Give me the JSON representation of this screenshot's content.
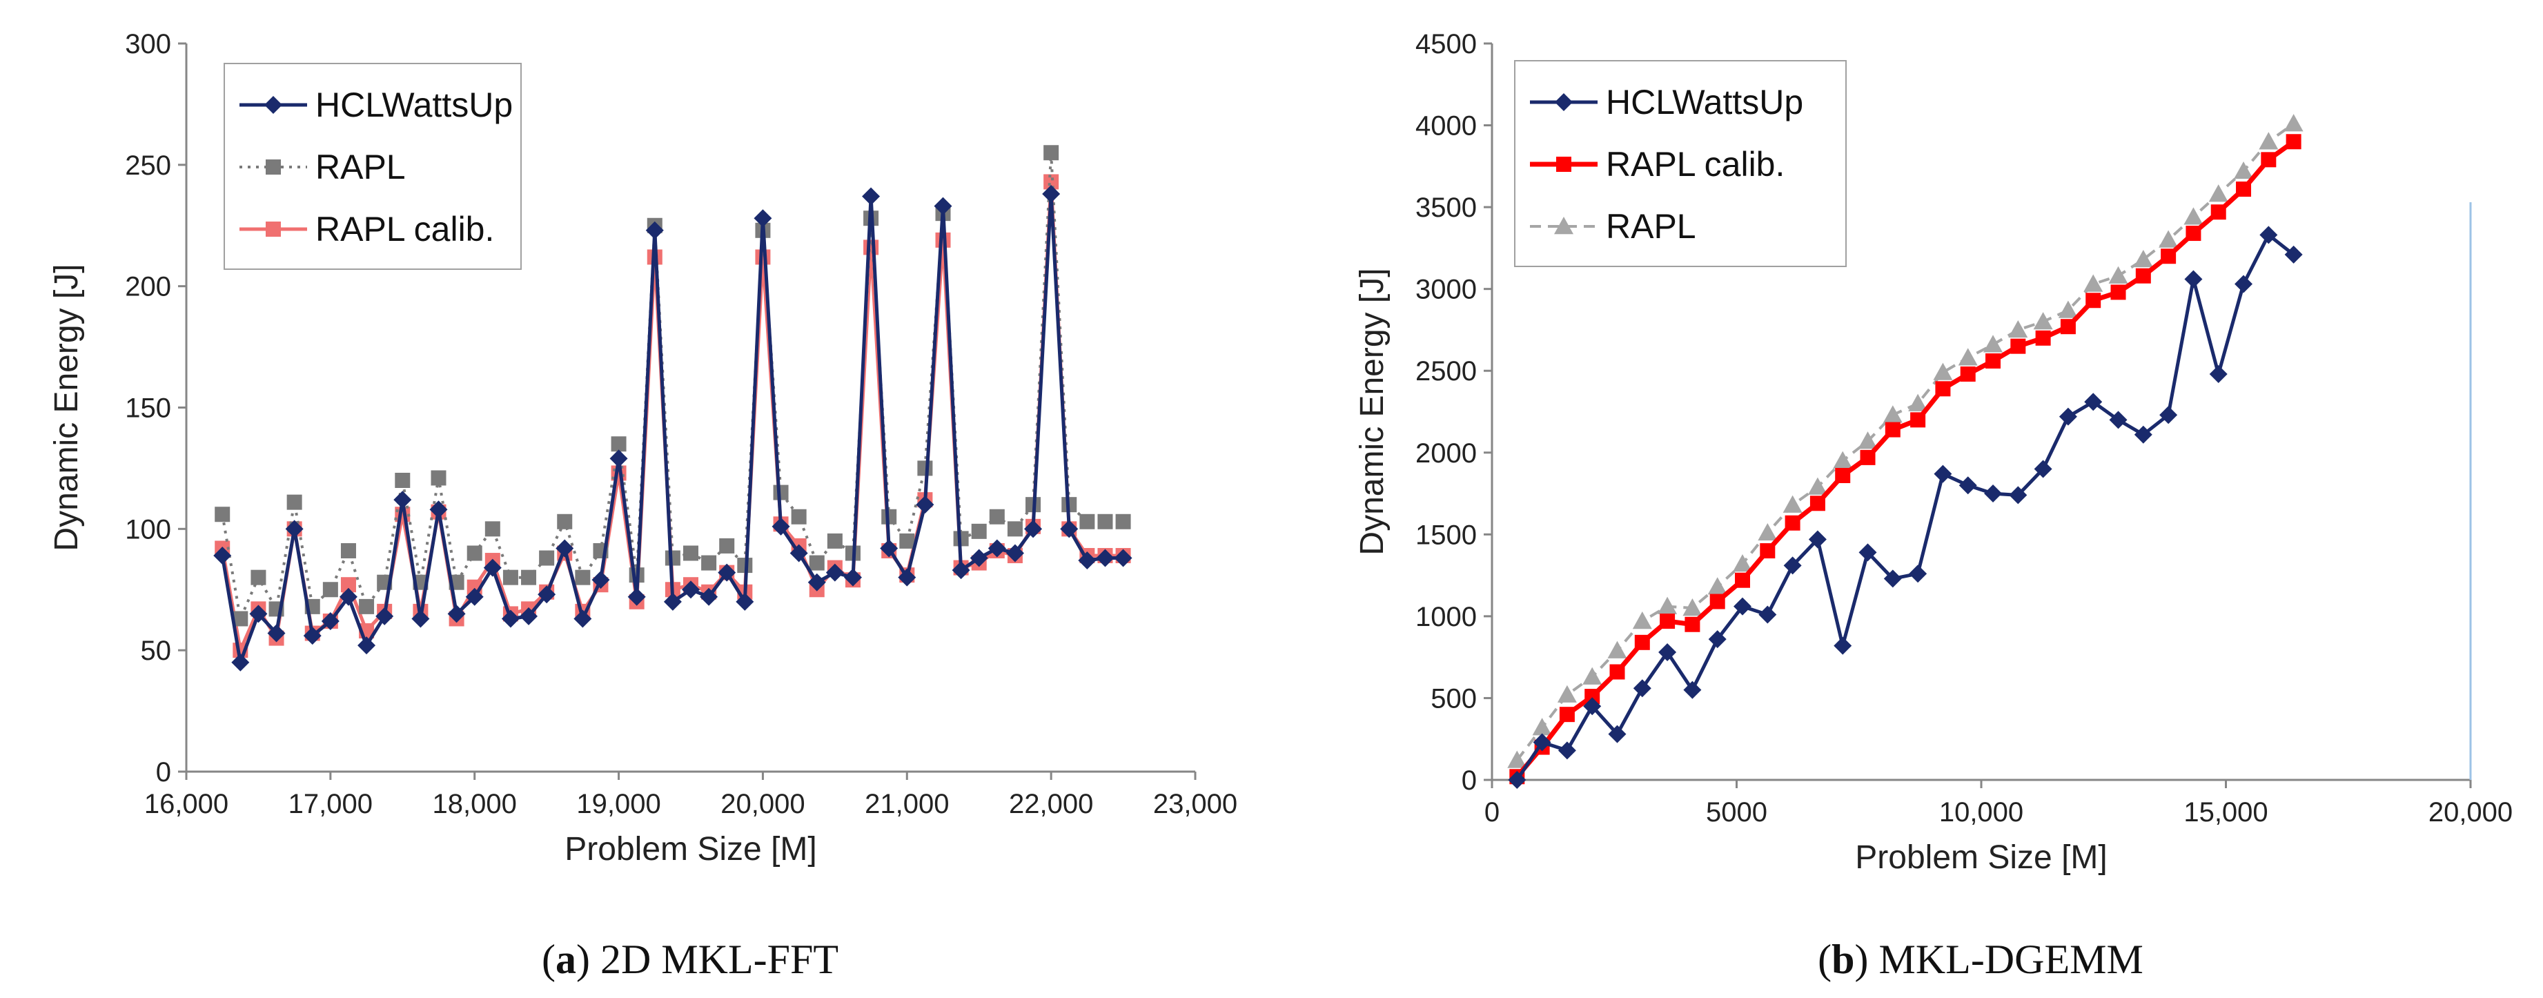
{
  "figures": [
    {
      "caption_letter": "a",
      "caption_text": "2D MKL-FFT"
    },
    {
      "caption_letter": "b",
      "caption_text": "MKL-DGEMM"
    }
  ],
  "colors": {
    "navy": "#1a2a6c",
    "gray": "#7a7a7a",
    "light_gray": "#a6a6a6",
    "red": "#ff0000",
    "pink": "#f07070"
  },
  "chart_data": [
    {
      "type": "line",
      "title": "",
      "xlabel": "Problem Size [M]",
      "ylabel": "Dynamic Energy [J]",
      "xlim": [
        16000,
        23000
      ],
      "ylim": [
        0,
        300
      ],
      "xticks": [
        "16,000",
        "17,000",
        "18,000",
        "19,000",
        "20,000",
        "21,000",
        "22,000",
        "23,000"
      ],
      "yticks": [
        "0",
        "50",
        "100",
        "150",
        "200",
        "250",
        "300"
      ],
      "grid": false,
      "legend_position": "top-left",
      "x": [
        16250,
        16375,
        16500,
        16625,
        16750,
        16875,
        17000,
        17125,
        17250,
        17375,
        17500,
        17625,
        17750,
        17875,
        18000,
        18125,
        18250,
        18375,
        18500,
        18625,
        18750,
        18875,
        19000,
        19125,
        19250,
        19375,
        19500,
        19625,
        19750,
        19875,
        20000,
        20125,
        20250,
        20375,
        20500,
        20625,
        20750,
        20875,
        21000,
        21125,
        21250,
        21375,
        21500,
        21625,
        21750,
        21875,
        22000,
        22125,
        22250,
        22375,
        22500
      ],
      "series": [
        {
          "name": "HCLWattsUp",
          "color": "#1a2a6c",
          "line_style": "solid",
          "marker": "diamond",
          "values": [
            89,
            45,
            65,
            57,
            100,
            56,
            62,
            72,
            52,
            64,
            112,
            63,
            108,
            65,
            72,
            84,
            63,
            64,
            73,
            92,
            63,
            79,
            129,
            72,
            223,
            70,
            75,
            72,
            82,
            70,
            228,
            101,
            90,
            78,
            82,
            80,
            237,
            92,
            80,
            110,
            233,
            83,
            88,
            92,
            90,
            100,
            238,
            100,
            87,
            88,
            88
          ]
        },
        {
          "name": "RAPL",
          "color": "#7a7a7a",
          "line_style": "dotted",
          "marker": "square",
          "values": [
            106,
            63,
            80,
            67,
            111,
            68,
            75,
            91,
            68,
            78,
            120,
            78,
            121,
            78,
            90,
            100,
            80,
            80,
            88,
            103,
            80,
            91,
            135,
            81,
            225,
            88,
            90,
            86,
            93,
            85,
            223,
            115,
            105,
            86,
            95,
            90,
            228,
            105,
            95,
            125,
            230,
            96,
            99,
            105,
            100,
            110,
            255,
            110,
            103,
            103,
            103
          ]
        },
        {
          "name": "RAPL calib.",
          "color": "#f07070",
          "line_style": "solid",
          "marker": "square",
          "values": [
            92,
            50,
            67,
            55,
            100,
            57,
            62,
            77,
            58,
            66,
            106,
            66,
            107,
            63,
            76,
            87,
            65,
            67,
            74,
            90,
            66,
            77,
            123,
            70,
            212,
            75,
            77,
            74,
            82,
            74,
            212,
            102,
            93,
            75,
            84,
            79,
            216,
            91,
            81,
            112,
            219,
            84,
            86,
            91,
            89,
            101,
            243,
            100,
            89,
            89,
            89
          ]
        }
      ]
    },
    {
      "type": "line",
      "title": "",
      "xlabel": "Problem Size [M]",
      "ylabel": "Dynamic Energy [J]",
      "xlim": [
        0,
        20000
      ],
      "ylim": [
        0,
        4500
      ],
      "xticks": [
        "0",
        "5000",
        "10,000",
        "15,000",
        "20,000"
      ],
      "yticks": [
        "0",
        "500",
        "1000",
        "1500",
        "2000",
        "2500",
        "3000",
        "3500",
        "4000",
        "4500"
      ],
      "grid": false,
      "legend_position": "top-left",
      "x": [
        512,
        1024,
        1536,
        2048,
        2560,
        3072,
        3584,
        4096,
        4608,
        5120,
        5632,
        6144,
        6656,
        7168,
        7680,
        8192,
        8704,
        9216,
        9728,
        10240,
        10752,
        11264,
        11776,
        12288,
        12800,
        13312,
        13824,
        14336,
        14848,
        15360,
        15872,
        16384
      ],
      "series": [
        {
          "name": "HCLWattsUp",
          "color": "#1a2a6c",
          "line_style": "solid",
          "marker": "diamond",
          "values": [
            0,
            230,
            180,
            450,
            280,
            560,
            780,
            550,
            860,
            1060,
            1010,
            1310,
            1470,
            820,
            1390,
            1230,
            1260,
            1870,
            1800,
            1750,
            1740,
            1900,
            2220,
            2310,
            2200,
            2110,
            2230,
            3060,
            2480,
            3030,
            3330,
            3210
          ]
        },
        {
          "name": "RAPL calib.",
          "color": "#ff0000",
          "line_style": "solid",
          "marker": "square",
          "values": [
            20,
            200,
            400,
            510,
            660,
            840,
            970,
            950,
            1090,
            1220,
            1400,
            1570,
            1690,
            1860,
            1970,
            2140,
            2200,
            2390,
            2480,
            2560,
            2650,
            2700,
            2770,
            2930,
            2980,
            3080,
            3200,
            3340,
            3470,
            3610,
            3790,
            3900
          ]
        },
        {
          "name": "RAPL",
          "color": "#a6a6a6",
          "line_style": "dashed",
          "marker": "triangle",
          "values": [
            120,
            320,
            520,
            630,
            790,
            970,
            1060,
            1050,
            1180,
            1320,
            1510,
            1680,
            1790,
            1950,
            2070,
            2230,
            2300,
            2490,
            2580,
            2660,
            2750,
            2800,
            2870,
            3030,
            3080,
            3180,
            3300,
            3440,
            3580,
            3720,
            3900,
            4010
          ]
        }
      ]
    }
  ]
}
